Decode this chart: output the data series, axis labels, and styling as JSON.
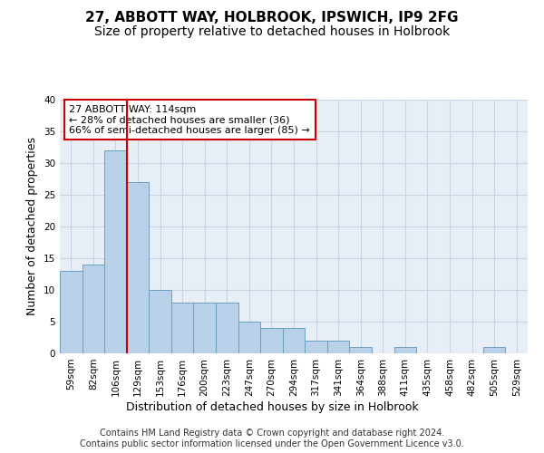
{
  "title": "27, ABBOTT WAY, HOLBROOK, IPSWICH, IP9 2FG",
  "subtitle": "Size of property relative to detached houses in Holbrook",
  "xlabel": "Distribution of detached houses by size in Holbrook",
  "ylabel": "Number of detached properties",
  "categories": [
    "59sqm",
    "82sqm",
    "106sqm",
    "129sqm",
    "153sqm",
    "176sqm",
    "200sqm",
    "223sqm",
    "247sqm",
    "270sqm",
    "294sqm",
    "317sqm",
    "341sqm",
    "364sqm",
    "388sqm",
    "411sqm",
    "435sqm",
    "458sqm",
    "482sqm",
    "505sqm",
    "529sqm"
  ],
  "values": [
    13,
    14,
    32,
    27,
    10,
    8,
    8,
    8,
    5,
    4,
    4,
    2,
    2,
    1,
    0,
    1,
    0,
    0,
    0,
    1,
    0
  ],
  "bar_color": "#b8d0e8",
  "bar_edge_color": "#6a9fc0",
  "grid_color": "#c8d4e4",
  "background_color": "#e8eef6",
  "vline_x_index": 2.5,
  "vline_color": "#cc0000",
  "annotation_text": "27 ABBOTT WAY: 114sqm\n← 28% of detached houses are smaller (36)\n66% of semi-detached houses are larger (85) →",
  "annotation_box_color": "#ffffff",
  "annotation_box_edge": "#cc0000",
  "ylim": [
    0,
    40
  ],
  "yticks": [
    0,
    5,
    10,
    15,
    20,
    25,
    30,
    35,
    40
  ],
  "footer": "Contains HM Land Registry data © Crown copyright and database right 2024.\nContains public sector information licensed under the Open Government Licence v3.0.",
  "title_fontsize": 11,
  "subtitle_fontsize": 10,
  "ylabel_fontsize": 9,
  "xlabel_fontsize": 9,
  "tick_fontsize": 7.5,
  "annotation_fontsize": 8,
  "footer_fontsize": 7
}
